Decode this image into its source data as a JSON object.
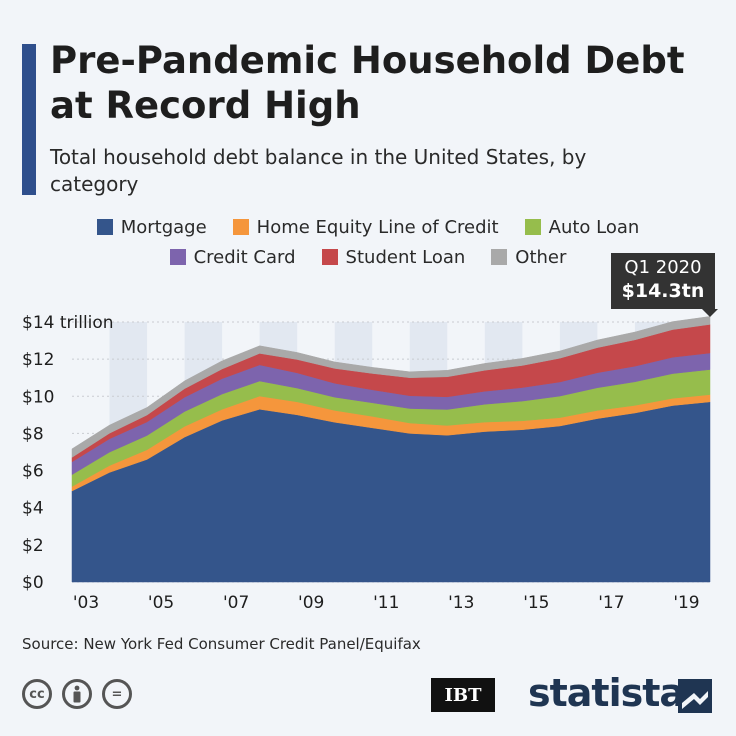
{
  "header": {
    "title": "Pre-Pandemic Household Debt at Record High",
    "subtitle": "Total household debt balance in the United States, by category"
  },
  "legend": [
    {
      "label": "Mortgage",
      "color": "#34558b"
    },
    {
      "label": "Home Equity Line of Credit",
      "color": "#f5963c"
    },
    {
      "label": "Auto Loan",
      "color": "#96bd4c"
    },
    {
      "label": "Credit Card",
      "color": "#7d64ad"
    },
    {
      "label": "Student Loan",
      "color": "#c5484b"
    },
    {
      "label": "Other",
      "color": "#a9a9a9"
    }
  ],
  "callout": {
    "label": "Q1 2020",
    "value": "$14.3tn"
  },
  "chart_data": {
    "type": "area",
    "stacked": true,
    "title": "Pre-Pandemic Household Debt at Record High",
    "ylabel": "",
    "xlabel": "",
    "ylim": [
      0,
      14
    ],
    "y_ticks": [
      0,
      2,
      4,
      6,
      8,
      10,
      12,
      14
    ],
    "y_tick_labels": [
      "$0",
      "$2",
      "$4",
      "$6",
      "$8",
      "$10",
      "$12",
      "$14 trillion"
    ],
    "x_tick_labels": [
      "'03",
      "'05",
      "'07",
      "'09",
      "'11",
      "'13",
      "'15",
      "'17",
      "'19"
    ],
    "x": [
      "2003",
      "2004",
      "2005",
      "2006",
      "2007",
      "2008",
      "2009",
      "2010",
      "2011",
      "2012",
      "2013",
      "2014",
      "2015",
      "2016",
      "2017",
      "2018",
      "2019",
      "Q1 2020"
    ],
    "series": [
      {
        "name": "Mortgage",
        "values": [
          4.9,
          5.9,
          6.6,
          7.8,
          8.7,
          9.3,
          9.0,
          8.6,
          8.3,
          8.0,
          7.9,
          8.1,
          8.2,
          8.4,
          8.8,
          9.1,
          9.5,
          9.7
        ]
      },
      {
        "name": "Home Equity Line of Credit",
        "values": [
          0.24,
          0.37,
          0.52,
          0.58,
          0.6,
          0.71,
          0.7,
          0.64,
          0.62,
          0.56,
          0.53,
          0.51,
          0.48,
          0.45,
          0.44,
          0.41,
          0.39,
          0.39
        ]
      },
      {
        "name": "Auto Loan",
        "values": [
          0.64,
          0.72,
          0.77,
          0.8,
          0.82,
          0.81,
          0.74,
          0.71,
          0.73,
          0.78,
          0.86,
          0.96,
          1.06,
          1.16,
          1.22,
          1.27,
          1.33,
          1.35
        ]
      },
      {
        "name": "Credit Card",
        "values": [
          0.69,
          0.72,
          0.73,
          0.77,
          0.83,
          0.87,
          0.82,
          0.75,
          0.7,
          0.69,
          0.68,
          0.7,
          0.73,
          0.76,
          0.81,
          0.84,
          0.88,
          0.89
        ]
      },
      {
        "name": "Student Loan",
        "values": [
          0.24,
          0.3,
          0.37,
          0.46,
          0.52,
          0.62,
          0.72,
          0.8,
          0.88,
          0.97,
          1.08,
          1.13,
          1.19,
          1.28,
          1.35,
          1.42,
          1.49,
          1.54
        ]
      },
      {
        "name": "Other",
        "values": [
          0.46,
          0.44,
          0.41,
          0.42,
          0.44,
          0.41,
          0.38,
          0.35,
          0.33,
          0.32,
          0.35,
          0.37,
          0.38,
          0.39,
          0.41,
          0.42,
          0.43,
          0.43
        ]
      }
    ],
    "annotations": [
      {
        "x": "Q1 2020",
        "label": "Q1 2020",
        "value": "$14.3tn"
      }
    ],
    "source": "Source: New York Fed Consumer Credit Panel/Equifax"
  },
  "footer": {
    "source": "Source: New York Fed Consumer Credit Panel/Equifax",
    "license_icons": [
      "cc",
      "by",
      "="
    ],
    "publisher": "IBT",
    "brand": "statista"
  }
}
